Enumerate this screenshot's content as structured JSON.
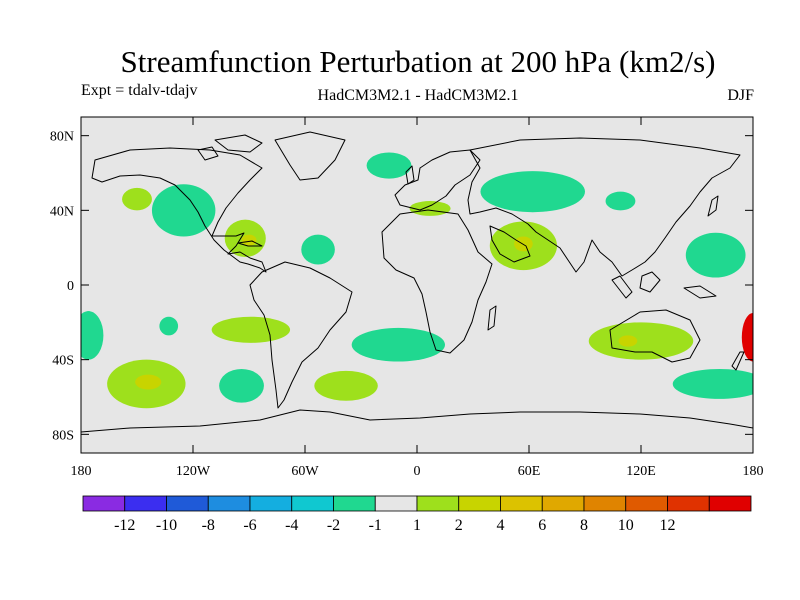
{
  "title": "Streamfunction Perturbation at 200 hPa (km2/s)",
  "left_subtitle": "Expt = tdalv-tdajv",
  "center_subtitle": "HadCM3M2.1 - HadCM3M2.1",
  "right_subtitle": "DJF",
  "map": {
    "projection": "cylindrical-equidistant",
    "background_color": "#e6e6e6",
    "lat_range": [
      -90,
      90
    ],
    "lon_range": [
      -180,
      180
    ],
    "lat_ticks": [
      {
        "value": 80,
        "label": "80N"
      },
      {
        "value": 40,
        "label": "40N"
      },
      {
        "value": 0,
        "label": "0"
      },
      {
        "value": -40,
        "label": "40S"
      },
      {
        "value": -80,
        "label": "80S"
      }
    ],
    "lon_ticks": [
      {
        "value": -180,
        "label": "180"
      },
      {
        "value": -120,
        "label": "120W"
      },
      {
        "value": -60,
        "label": "60W"
      },
      {
        "value": 0,
        "label": "0"
      },
      {
        "value": 60,
        "label": "60E"
      },
      {
        "value": 120,
        "label": "120E"
      },
      {
        "value": 180,
        "label": "180"
      }
    ],
    "regions": [
      {
        "name": "neg-north-atlantic",
        "lon": -15,
        "lat": 64,
        "rlon": 12,
        "rlat": 7,
        "color": "#20d890"
      },
      {
        "name": "neg-pacific-30n",
        "lon": -150,
        "lat": 46,
        "rlon": 8,
        "rlat": 6,
        "color": "#9ee01c"
      },
      {
        "name": "neg-pacific-ne",
        "lon": -125,
        "lat": 40,
        "rlon": 17,
        "rlat": 14,
        "color": "#20d890"
      },
      {
        "name": "pos-caribbean",
        "lon": -92,
        "lat": 25,
        "rlon": 11,
        "rlat": 10,
        "color": "#9ee01c"
      },
      {
        "name": "pos-caribbean-core",
        "lon": -90,
        "lat": 24,
        "rlon": 4,
        "rlat": 3,
        "color": "#c8d400"
      },
      {
        "name": "neg-atlantic-20n",
        "lon": -53,
        "lat": 19,
        "rlon": 9,
        "rlat": 8,
        "color": "#20d890"
      },
      {
        "name": "pos-mediterranean",
        "lon": 7,
        "lat": 41,
        "rlon": 11,
        "rlat": 4,
        "color": "#9ee01c"
      },
      {
        "name": "neg-central-asia",
        "lon": 62,
        "lat": 50,
        "rlon": 28,
        "rlat": 11,
        "color": "#20d890"
      },
      {
        "name": "pos-arabia",
        "lon": 57,
        "lat": 21,
        "rlon": 18,
        "rlat": 13,
        "color": "#9ee01c"
      },
      {
        "name": "pos-arabia-core",
        "lon": 57,
        "lat": 22,
        "rlon": 5,
        "rlat": 4,
        "color": "#c8d400"
      },
      {
        "name": "neg-east-asia",
        "lon": 109,
        "lat": 45,
        "rlon": 8,
        "rlat": 5,
        "color": "#20d890"
      },
      {
        "name": "neg-west-pacific",
        "lon": 160,
        "lat": 16,
        "rlon": 16,
        "rlat": 12,
        "color": "#20d890"
      },
      {
        "name": "neg-sh-pacific-west",
        "lon": -176,
        "lat": -27,
        "rlon": 8,
        "rlat": 13,
        "color": "#20d890"
      },
      {
        "name": "neg-sh-pacific-small",
        "lon": -133,
        "lat": -22,
        "rlon": 5,
        "rlat": 5,
        "color": "#20d890"
      },
      {
        "name": "pos-sh-pacific-30s",
        "lon": -89,
        "lat": -24,
        "rlon": 21,
        "rlat": 7,
        "color": "#9ee01c"
      },
      {
        "name": "neg-south-atlantic",
        "lon": -10,
        "lat": -32,
        "rlon": 25,
        "rlat": 9,
        "color": "#20d890"
      },
      {
        "name": "pos-sh-pacific-50s",
        "lon": -145,
        "lat": -53,
        "rlon": 21,
        "rlat": 13,
        "color": "#9ee01c"
      },
      {
        "name": "pos-sh-pacific-50s-core",
        "lon": -144,
        "lat": -52,
        "rlon": 7,
        "rlat": 4,
        "color": "#c8d400"
      },
      {
        "name": "neg-sh-pacific-55s",
        "lon": -94,
        "lat": -54,
        "rlon": 12,
        "rlat": 9,
        "color": "#20d890"
      },
      {
        "name": "pos-south-atlantic-50s",
        "lon": -38,
        "lat": -54,
        "rlon": 17,
        "rlat": 8,
        "color": "#9ee01c"
      },
      {
        "name": "pos-australia",
        "lon": 120,
        "lat": -30,
        "rlon": 28,
        "rlat": 10,
        "color": "#9ee01c"
      },
      {
        "name": "pos-australia-core",
        "lon": 113,
        "lat": -30,
        "rlon": 5,
        "rlat": 3,
        "color": "#c8d400"
      },
      {
        "name": "neg-sh-pacific-east",
        "lon": -176,
        "lat": -22,
        "rlon": 4,
        "rlat": 8,
        "color": "#20d890"
      },
      {
        "name": "neg-tasman-55s",
        "lon": 162,
        "lat": -53,
        "rlon": 25,
        "rlat": 8,
        "color": "#20d890"
      },
      {
        "name": "pos-dateline-30s",
        "lon": 180,
        "lat": -28,
        "rlon": 6,
        "rlat": 13,
        "color": "#e00000"
      }
    ]
  },
  "colorbar": {
    "colors": [
      "#8a2be2",
      "#3b2ef0",
      "#1f5ad8",
      "#1e8de0",
      "#14aee0",
      "#10c8d0",
      "#20d890",
      "#e6e6e6",
      "#9ee01c",
      "#c8d400",
      "#dcc200",
      "#e0a800",
      "#e08400",
      "#e05a00",
      "#e03200",
      "#e00000"
    ],
    "labels": [
      "-12",
      "-10",
      "-8",
      "-6",
      "-4",
      "-2",
      "-1",
      "1",
      "2",
      "4",
      "6",
      "8",
      "10",
      "12"
    ]
  }
}
